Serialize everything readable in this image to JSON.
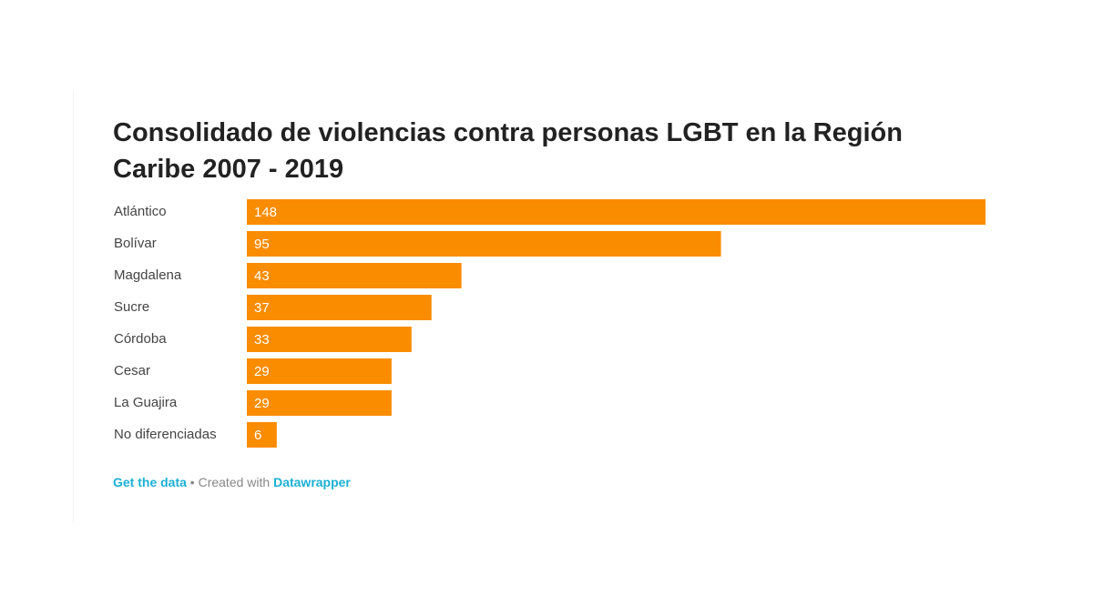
{
  "chart_data": {
    "type": "bar",
    "orientation": "horizontal",
    "title": "Consolidado de violencias contra personas LGBT en la Región Caribe 2007 - 2019",
    "categories": [
      "Atlántico",
      "Bolívar",
      "Magdalena",
      "Sucre",
      "Córdoba",
      "Cesar",
      "La Guajira",
      "No diferenciadas"
    ],
    "values": [
      148,
      95,
      43,
      37,
      33,
      29,
      29,
      6
    ],
    "color": "#fa8c00",
    "footer": {
      "link": "Get the data",
      "credit": "• Created with",
      "tool": "Datawrapper"
    }
  }
}
